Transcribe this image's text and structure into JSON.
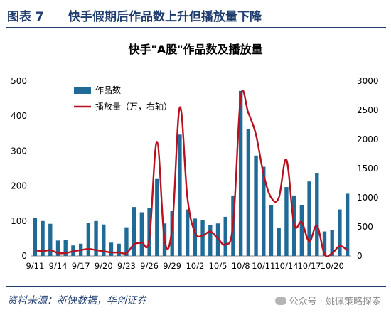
{
  "figure": {
    "number": "图表 7",
    "title": "快手假期后作品数上升但播放量下降",
    "source": "资料来源：新快数据，华创证券",
    "watermark": "公众号 · 姚佩策略探索"
  },
  "colors": {
    "bar": "#1f6a96",
    "line": "#b8101e",
    "heading": "#1f3d6e"
  },
  "chart_data": {
    "type": "bar",
    "title": "快手\"A股\"作品数及播放量",
    "legend": {
      "position": "top-left",
      "bar_label": "作品数",
      "line_label": "播放量（万，右轴）"
    },
    "x_tick_labels": [
      "9/11",
      "9/14",
      "9/17",
      "9/20",
      "9/23",
      "9/26",
      "9/29",
      "10/2",
      "10/5",
      "10/8",
      "10/11",
      "10/14",
      "10/17",
      "10/20"
    ],
    "y_left": {
      "min": 0,
      "max": 500,
      "ticks": [
        "0",
        "100",
        "200",
        "300",
        "400",
        "500"
      ]
    },
    "y_right": {
      "min": 0,
      "max": 3000,
      "ticks": [
        "0",
        "500",
        "1000",
        "1500",
        "2000",
        "2500",
        "3000"
      ]
    },
    "series": [
      {
        "name": "作品数",
        "type": "bar",
        "axis": "left",
        "values": [
          108,
          100,
          92,
          44,
          45,
          30,
          35,
          95,
          100,
          90,
          38,
          35,
          82,
          140,
          125,
          138,
          220,
          93,
          128,
          347,
          133,
          107,
          103,
          88,
          93,
          112,
          173,
          472,
          363,
          287,
          255,
          145,
          80,
          197,
          173,
          145,
          213,
          237,
          70,
          75,
          133,
          178
        ]
      },
      {
        "name": "播放量（万，右轴）",
        "type": "line",
        "axis": "right",
        "values": [
          100,
          80,
          100,
          50,
          50,
          80,
          100,
          120,
          100,
          80,
          60,
          60,
          50,
          200,
          230,
          300,
          1960,
          270,
          500,
          2550,
          1000,
          400,
          350,
          420,
          300,
          200,
          550,
          2720,
          2450,
          2080,
          1400,
          1000,
          1000,
          1650,
          550,
          580,
          250,
          520,
          30,
          50,
          170,
          100
        ]
      }
    ]
  }
}
